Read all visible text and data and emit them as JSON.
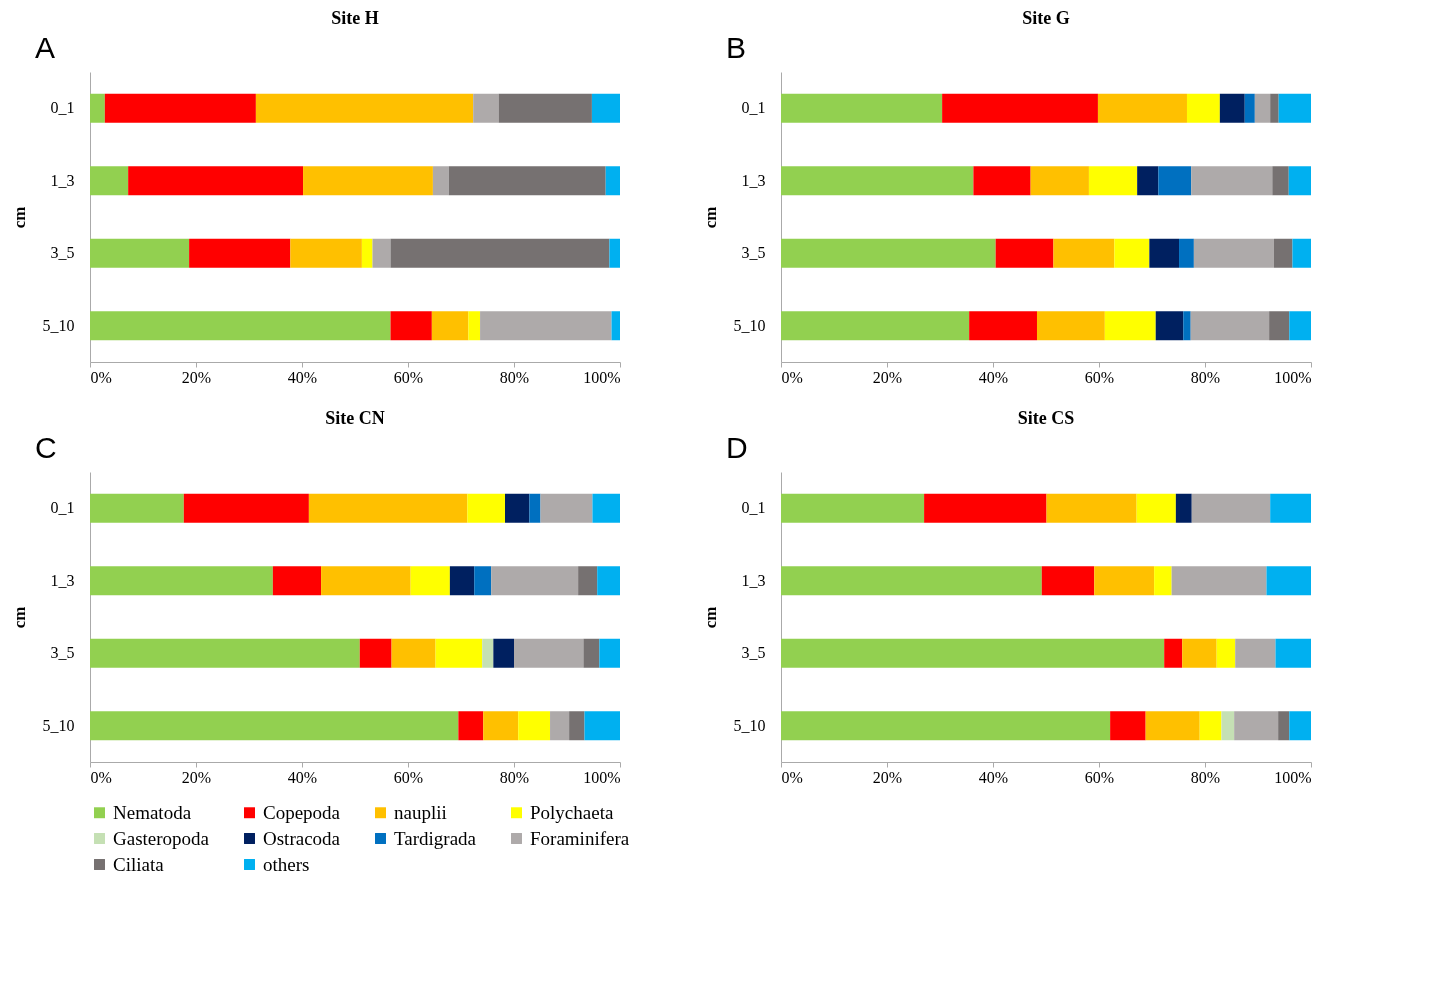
{
  "chart_data": [
    {
      "type": "bar",
      "orientation": "horizontal",
      "stacked": true,
      "title": "Site H",
      "ylabel": "cm",
      "annotations": [
        "A"
      ],
      "legend": "bottom",
      "categories": [
        "0_1",
        "1_3",
        "3_5",
        "5_10"
      ],
      "xlim": [
        0,
        100
      ],
      "xticks": [
        {
          "value": 0,
          "label": "0%"
        },
        {
          "value": 20,
          "label": "20%"
        },
        {
          "value": 40,
          "label": "40%"
        },
        {
          "value": 60,
          "label": "60%"
        },
        {
          "value": 80,
          "label": "80%"
        },
        {
          "value": 100,
          "label": "100%"
        }
      ],
      "series": [
        {
          "name": "Nematoda",
          "color": "#92d050",
          "values": [
            2.8,
            7.2,
            18.7,
            56.7
          ]
        },
        {
          "name": "Copepoda",
          "color": "#ff0000",
          "values": [
            28.5,
            33.0,
            19.1,
            7.8
          ]
        },
        {
          "name": "nauplii",
          "color": "#ffc000",
          "values": [
            41.0,
            24.5,
            13.5,
            6.9
          ]
        },
        {
          "name": "Polychaeta",
          "color": "#ffff00",
          "values": [
            null,
            null,
            2.0,
            2.2
          ]
        },
        {
          "name": "Foraminifera",
          "color": "#aeaaaa",
          "values": [
            4.8,
            3.0,
            3.4,
            24.8
          ]
        },
        {
          "name": "Ciliata",
          "color": "#767171",
          "values": [
            17.6,
            29.6,
            41.3,
            null
          ]
        },
        {
          "name": "others",
          "color": "#00b0f0",
          "values": [
            5.3,
            2.7,
            2.0,
            1.6
          ]
        }
      ]
    },
    {
      "type": "bar",
      "orientation": "horizontal",
      "stacked": true,
      "title": "Site G",
      "ylabel": "cm",
      "annotations": [
        "B"
      ],
      "legend": "bottom",
      "categories": [
        "0_1",
        "1_3",
        "3_5",
        "5_10"
      ],
      "xlim": [
        0,
        100
      ],
      "xticks": [
        {
          "value": 0,
          "label": "0%"
        },
        {
          "value": 20,
          "label": "20%"
        },
        {
          "value": 40,
          "label": "40%"
        },
        {
          "value": 60,
          "label": "60%"
        },
        {
          "value": 80,
          "label": "80%"
        },
        {
          "value": 100,
          "label": "100%"
        }
      ],
      "series": [
        {
          "name": "Nematoda",
          "color": "#92d050",
          "values": [
            30.4,
            36.3,
            40.5,
            35.5
          ]
        },
        {
          "name": "Copepoda",
          "color": "#ff0000",
          "values": [
            29.4,
            10.8,
            10.9,
            12.8
          ]
        },
        {
          "name": "nauplii",
          "color": "#ffc000",
          "values": [
            16.8,
            11.0,
            11.5,
            12.8
          ]
        },
        {
          "name": "Polychaeta",
          "color": "#ffff00",
          "values": [
            6.2,
            9.1,
            6.6,
            9.6
          ]
        },
        {
          "name": "Ostracoda",
          "color": "#002060",
          "values": [
            4.7,
            4.0,
            5.6,
            5.2
          ]
        },
        {
          "name": "Tardigrada",
          "color": "#0070c0",
          "values": [
            1.9,
            6.2,
            2.8,
            1.4
          ]
        },
        {
          "name": "Foraminifera",
          "color": "#aeaaaa",
          "values": [
            2.9,
            15.3,
            15.1,
            14.8
          ]
        },
        {
          "name": "Ciliata",
          "color": "#767171",
          "values": [
            1.6,
            3.1,
            3.5,
            3.8
          ]
        },
        {
          "name": "others",
          "color": "#00b0f0",
          "values": [
            6.1,
            4.2,
            3.5,
            4.1
          ]
        }
      ]
    },
    {
      "type": "bar",
      "orientation": "horizontal",
      "stacked": true,
      "title": "Site CN",
      "ylabel": "cm",
      "annotations": [
        "C"
      ],
      "legend": "bottom",
      "categories": [
        "0_1",
        "1_3",
        "3_5",
        "5_10"
      ],
      "xlim": [
        0,
        100
      ],
      "xticks": [
        {
          "value": 0,
          "label": "0%"
        },
        {
          "value": 20,
          "label": "20%"
        },
        {
          "value": 40,
          "label": "40%"
        },
        {
          "value": 60,
          "label": "60%"
        },
        {
          "value": 80,
          "label": "80%"
        },
        {
          "value": 100,
          "label": "100%"
        }
      ],
      "series": [
        {
          "name": "Nematoda",
          "color": "#92d050",
          "values": [
            17.7,
            34.5,
            50.9,
            69.5
          ]
        },
        {
          "name": "Copepoda",
          "color": "#ff0000",
          "values": [
            23.6,
            9.1,
            6.0,
            4.7
          ]
        },
        {
          "name": "nauplii",
          "color": "#ffc000",
          "values": [
            29.9,
            16.9,
            8.3,
            6.6
          ]
        },
        {
          "name": "Polychaeta",
          "color": "#ffff00",
          "values": [
            7.1,
            7.4,
            8.8,
            6.0
          ]
        },
        {
          "name": "Gasteropoda",
          "color": "#c5e0b4",
          "values": [
            null,
            null,
            2.1,
            null
          ]
        },
        {
          "name": "Ostracoda",
          "color": "#002060",
          "values": [
            4.6,
            4.6,
            3.9,
            null
          ]
        },
        {
          "name": "Tardigrada",
          "color": "#0070c0",
          "values": [
            2.1,
            3.2,
            null,
            null
          ]
        },
        {
          "name": "Foraminifera",
          "color": "#aeaaaa",
          "values": [
            9.8,
            16.4,
            13.1,
            3.6
          ]
        },
        {
          "name": "Ciliata",
          "color": "#767171",
          "values": [
            null,
            3.6,
            3.0,
            2.9
          ]
        },
        {
          "name": "others",
          "color": "#00b0f0",
          "values": [
            5.2,
            4.3,
            3.9,
            6.7
          ]
        }
      ]
    },
    {
      "type": "bar",
      "orientation": "horizontal",
      "stacked": true,
      "title": "Site CS",
      "ylabel": "cm",
      "annotations": [
        "D"
      ],
      "legend": "bottom",
      "categories": [
        "0_1",
        "1_3",
        "3_5",
        "5_10"
      ],
      "xlim": [
        0,
        100
      ],
      "xticks": [
        {
          "value": 0,
          "label": "0%"
        },
        {
          "value": 20,
          "label": "20%"
        },
        {
          "value": 40,
          "label": "40%"
        },
        {
          "value": 60,
          "label": "60%"
        },
        {
          "value": 80,
          "label": "80%"
        },
        {
          "value": 100,
          "label": "100%"
        }
      ],
      "series": [
        {
          "name": "Nematoda",
          "color": "#92d050",
          "values": [
            27.0,
            49.2,
            72.3,
            62.1
          ]
        },
        {
          "name": "Copepoda",
          "color": "#ff0000",
          "values": [
            23.1,
            9.9,
            3.4,
            6.7
          ]
        },
        {
          "name": "nauplii",
          "color": "#ffc000",
          "values": [
            17.0,
            11.3,
            6.5,
            10.2
          ]
        },
        {
          "name": "Polychaeta",
          "color": "#ffff00",
          "values": [
            7.4,
            3.3,
            3.5,
            4.1
          ]
        },
        {
          "name": "Gasteropoda",
          "color": "#c5e0b4",
          "values": [
            null,
            null,
            null,
            2.4
          ]
        },
        {
          "name": "Ostracoda",
          "color": "#002060",
          "values": [
            3.0,
            null,
            null,
            null
          ]
        },
        {
          "name": "Foraminifera",
          "color": "#aeaaaa",
          "values": [
            14.8,
            17.9,
            7.6,
            8.3
          ]
        },
        {
          "name": "Ciliata",
          "color": "#767171",
          "values": [
            null,
            null,
            null,
            2.1
          ]
        },
        {
          "name": "others",
          "color": "#00b0f0",
          "values": [
            7.7,
            8.4,
            6.7,
            4.1
          ]
        }
      ]
    }
  ]
}
